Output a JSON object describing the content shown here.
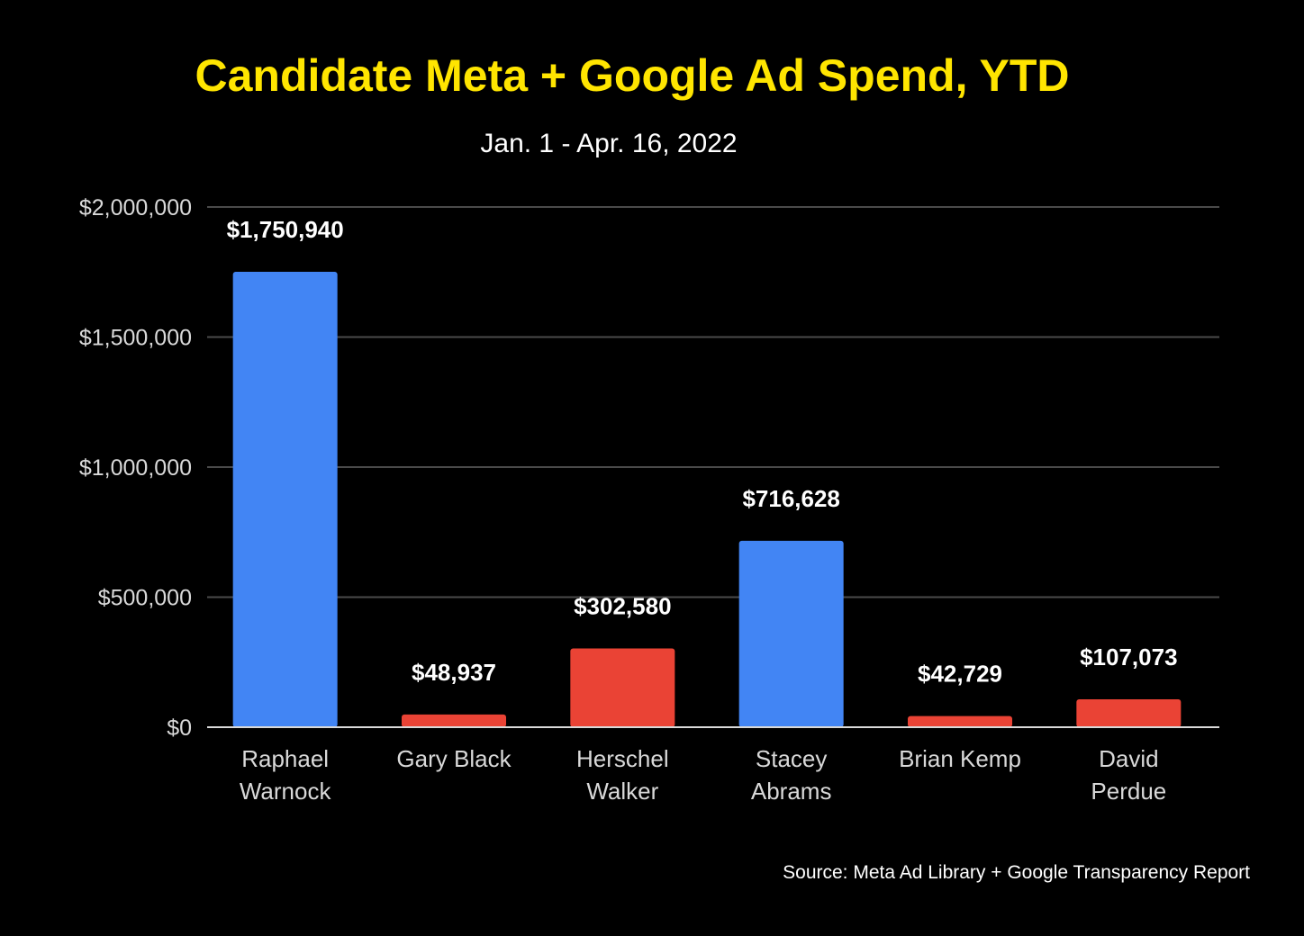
{
  "chart_data": {
    "type": "bar",
    "title": "Candidate Meta + Google Ad Spend, YTD",
    "subtitle": "Jan. 1 - Apr. 16, 2022",
    "source": "Source: Meta Ad Library + Google Transparency Report",
    "xlabel": "",
    "ylabel": "",
    "ylim": [
      0,
      2000000
    ],
    "yticks": [
      0,
      500000,
      1000000,
      1500000,
      2000000
    ],
    "ytick_labels": [
      "$0",
      "$500,000",
      "$1,000,000",
      "$1,500,000",
      "$2,000,000"
    ],
    "grid": true,
    "legend": "none",
    "categories": [
      [
        "Raphael",
        "Warnock"
      ],
      [
        "Gary Black"
      ],
      [
        "Herschel",
        "Walker"
      ],
      [
        "Stacey",
        "Abrams"
      ],
      [
        "Brian Kemp"
      ],
      [
        "David",
        "Perdue"
      ]
    ],
    "values": [
      1750940,
      48937,
      302580,
      716628,
      42729,
      107073
    ],
    "value_labels": [
      "$1,750,940",
      "$48,937",
      "$302,580",
      "$716,628",
      "$42,729",
      "$107,073"
    ],
    "bar_colors": [
      "#4285F4",
      "#EA4335",
      "#EA4335",
      "#4285F4",
      "#EA4335",
      "#EA4335"
    ]
  },
  "colors": {
    "background": "#000000",
    "title": "#FFE500",
    "text": "#FFFFFF",
    "axis_text": "#D9D9D9",
    "gridline": "#4A4A4A",
    "baseline": "#D9D9D9"
  }
}
